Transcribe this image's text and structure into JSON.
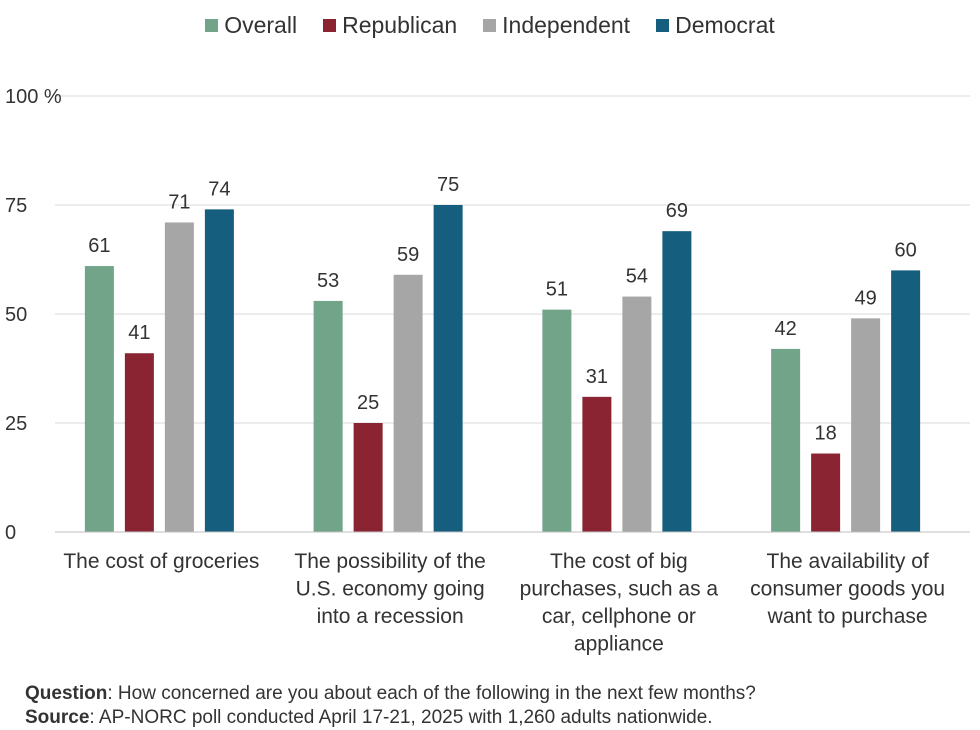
{
  "chart_data": {
    "type": "bar",
    "categories": [
      [
        "The cost of groceries"
      ],
      [
        "The possibility of the",
        "U.S. economy going",
        "into a recession"
      ],
      [
        "The cost of big",
        "purchases, such as a",
        "car, cellphone or",
        "appliance"
      ],
      [
        "The availability of",
        "consumer goods you",
        "want to purchase"
      ]
    ],
    "series": [
      {
        "name": "Overall",
        "color": "#72a489",
        "values": [
          61,
          53,
          51,
          42
        ]
      },
      {
        "name": "Republican",
        "color": "#8a2432",
        "values": [
          41,
          25,
          31,
          18
        ]
      },
      {
        "name": "Independent",
        "color": "#a6a6a6",
        "values": [
          71,
          59,
          54,
          49
        ]
      },
      {
        "name": "Democrat",
        "color": "#165e7e",
        "values": [
          74,
          75,
          69,
          60
        ]
      }
    ],
    "ylim": [
      0,
      100
    ],
    "yticks": [
      0,
      25,
      50,
      75,
      100
    ],
    "ytick_labels": [
      "0",
      "25",
      "50",
      "75",
      "100 %"
    ],
    "grid": true,
    "legend_position": "top"
  },
  "footer": {
    "question_label": "Question",
    "question_text": ": How concerned are you about each of the following in the next few months?",
    "source_label": "Source",
    "source_text": ": AP-NORC poll conducted April 17-21, 2025 with 1,260 adults nationwide."
  }
}
